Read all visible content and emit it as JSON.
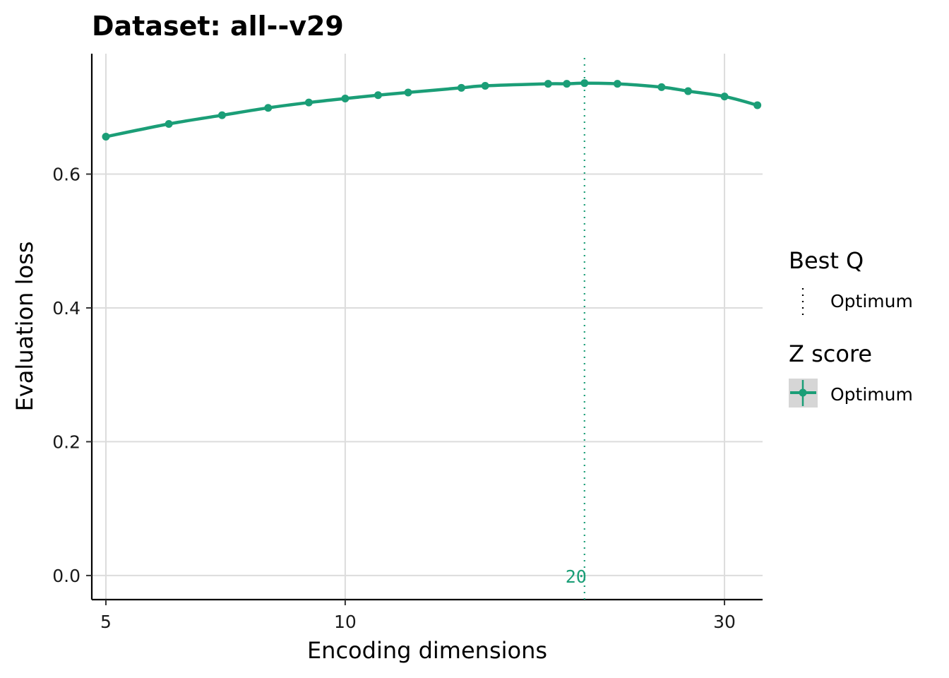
{
  "chart_data": {
    "type": "line",
    "title": "Dataset: all--v29",
    "xlabel": "Encoding dimensions",
    "ylabel": "Evaluation loss",
    "x_scale": "log",
    "xlim": [
      4.8,
      33.5
    ],
    "ylim": [
      -0.036,
      0.78
    ],
    "x_ticks": [
      5,
      10,
      30
    ],
    "x_tick_labels": [
      "5",
      "10",
      "30"
    ],
    "y_ticks": [
      0.0,
      0.2,
      0.4,
      0.6
    ],
    "y_tick_labels": [
      "0.0",
      "0.2",
      "0.4",
      "0.6"
    ],
    "grid": true,
    "series_color": "#1b9e77",
    "series": [
      {
        "name": "Optimum",
        "x": [
          5,
          6,
          7,
          8,
          9,
          10,
          11,
          12,
          14,
          15,
          18,
          19,
          20,
          22,
          25,
          27,
          30,
          33
        ],
        "y": [
          0.656,
          0.675,
          0.688,
          0.699,
          0.707,
          0.713,
          0.718,
          0.722,
          0.729,
          0.732,
          0.735,
          0.735,
          0.736,
          0.735,
          0.73,
          0.724,
          0.716,
          0.703
        ]
      }
    ],
    "vline": {
      "x": 20,
      "label": "20",
      "style": "dotted"
    },
    "legend": {
      "placement": "right",
      "groups": [
        {
          "title": "Best Q",
          "label": "Optimum",
          "key": "dotted-line"
        },
        {
          "title": "Z score",
          "label": "Optimum",
          "key": "point-line-errorbar"
        }
      ]
    }
  }
}
